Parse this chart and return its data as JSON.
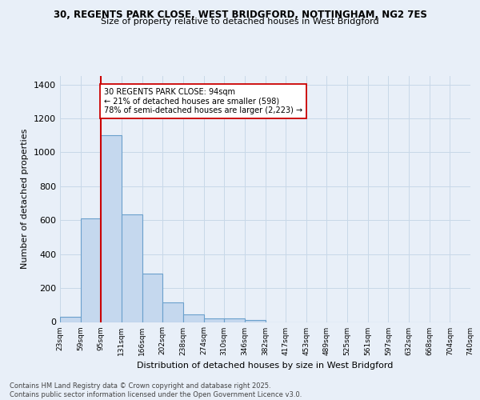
{
  "title1": "30, REGENTS PARK CLOSE, WEST BRIDGFORD, NOTTINGHAM, NG2 7ES",
  "title2": "Size of property relative to detached houses in West Bridgford",
  "xlabel": "Distribution of detached houses by size in West Bridgford",
  "ylabel": "Number of detached properties",
  "bar_values": [
    30,
    610,
    1100,
    635,
    285,
    115,
    45,
    20,
    20,
    10,
    0,
    0,
    0,
    0,
    0,
    0,
    0,
    0,
    0,
    0
  ],
  "bin_labels": [
    "23sqm",
    "59sqm",
    "95sqm",
    "131sqm",
    "166sqm",
    "202sqm",
    "238sqm",
    "274sqm",
    "310sqm",
    "346sqm",
    "382sqm",
    "417sqm",
    "453sqm",
    "489sqm",
    "525sqm",
    "561sqm",
    "597sqm",
    "632sqm",
    "668sqm",
    "704sqm",
    "740sqm"
  ],
  "bar_color": "#c5d8ee",
  "bar_edge_color": "#6aa0cc",
  "grid_color": "#c8d8e8",
  "bg_color": "#e8eff8",
  "vline_color": "#cc0000",
  "annotation_text": "30 REGENTS PARK CLOSE: 94sqm\n← 21% of detached houses are smaller (598)\n78% of semi-detached houses are larger (2,223) →",
  "annotation_box_color": "#ffffff",
  "annotation_edge_color": "#cc0000",
  "footer_text": "Contains HM Land Registry data © Crown copyright and database right 2025.\nContains public sector information licensed under the Open Government Licence v3.0.",
  "ylim": [
    0,
    1450
  ],
  "yticks": [
    0,
    200,
    400,
    600,
    800,
    1000,
    1200,
    1400
  ]
}
